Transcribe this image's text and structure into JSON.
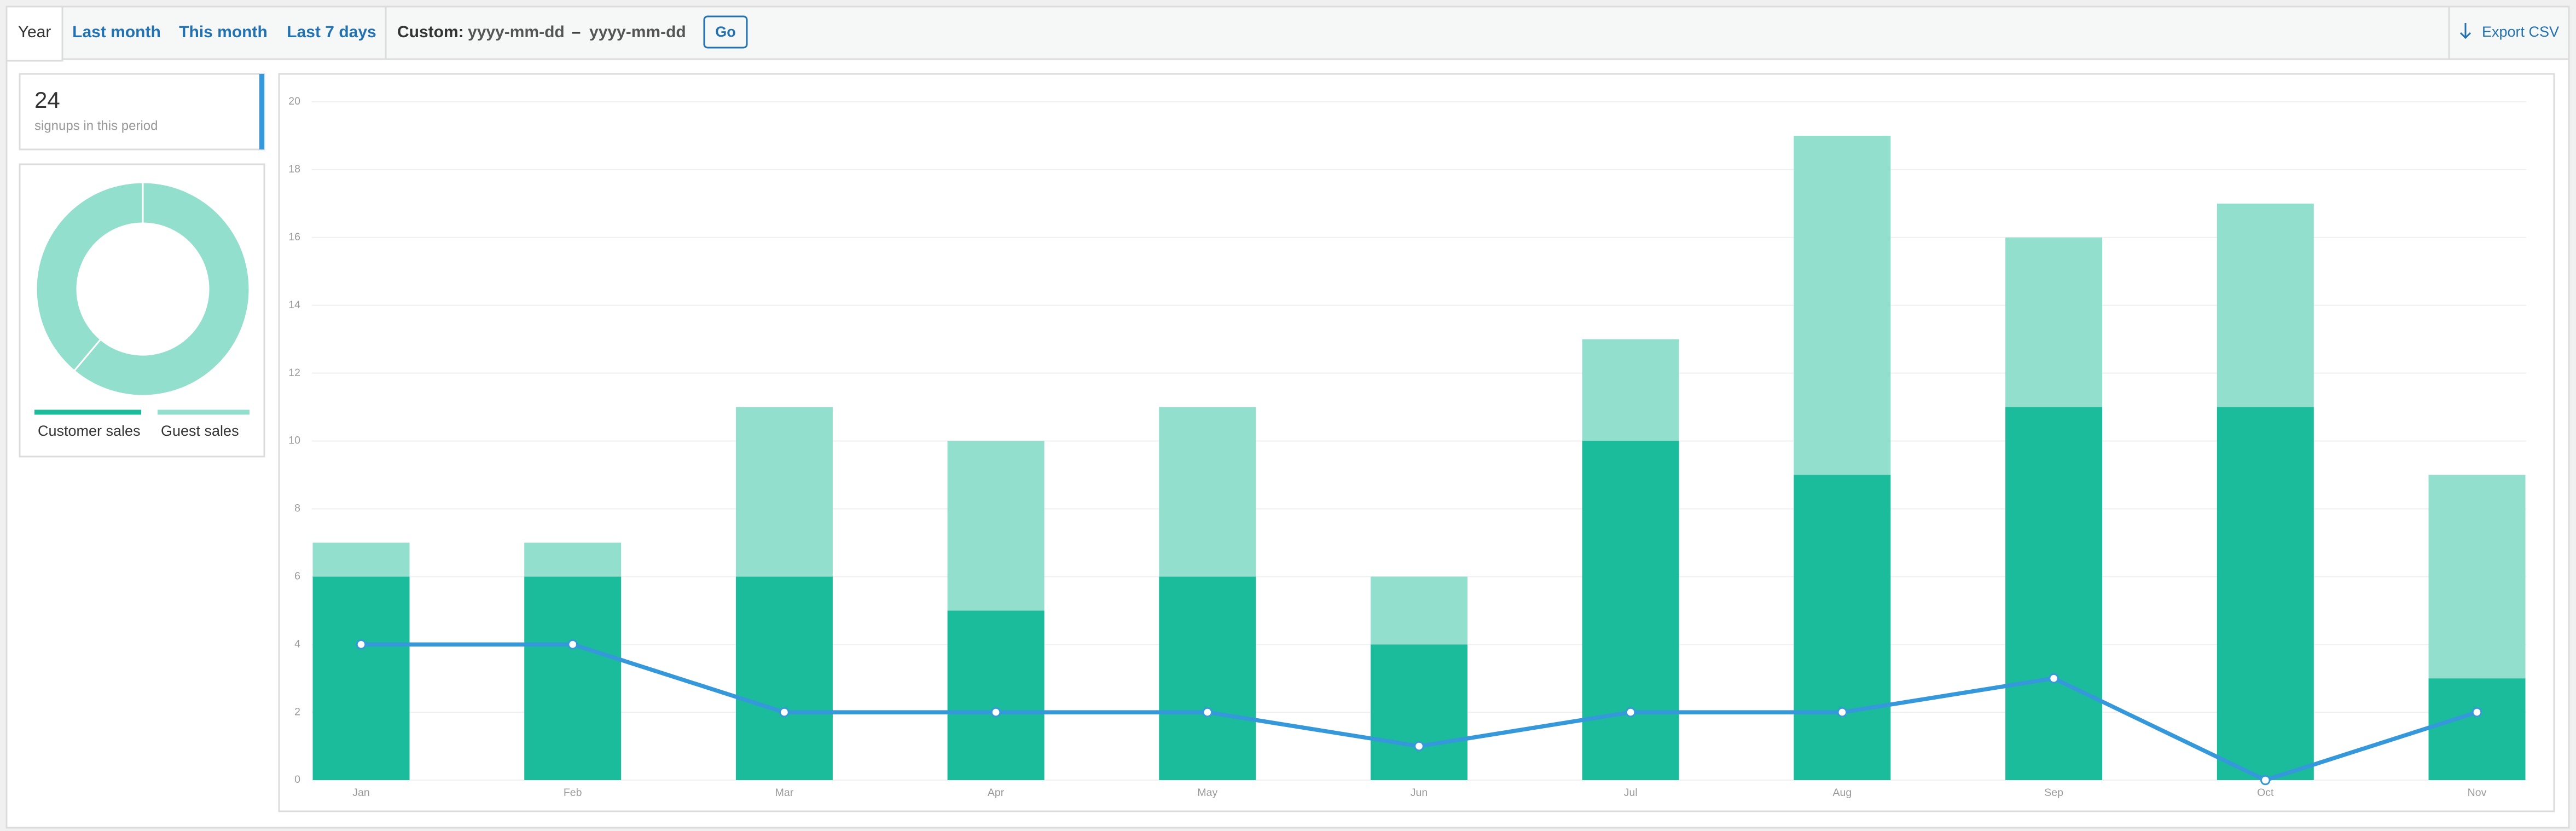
{
  "toolbar": {
    "tabs": [
      "Year",
      "Last month",
      "This month",
      "Last 7 days"
    ],
    "custom_label": "Custom:",
    "date_from": "yyyy-mm-dd",
    "separator": "–",
    "date_to": "yyyy-mm-dd",
    "go": "Go",
    "export": "Export CSV"
  },
  "summary": {
    "value": "24",
    "label": "signups in this period"
  },
  "chart_data": {
    "type": "bar",
    "categories": [
      "Jan",
      "Feb",
      "Mar",
      "Apr",
      "May",
      "Jun",
      "Jul",
      "Aug",
      "Sep",
      "Oct",
      "Nov"
    ],
    "series": [
      {
        "name": "Customer sales",
        "color": "#1bbc9b",
        "values": [
          6,
          6,
          6,
          5,
          6,
          4,
          10,
          9,
          11,
          11,
          3
        ]
      },
      {
        "name": "Guest sales",
        "color": "#93dfce",
        "values": [
          1,
          1,
          5,
          5,
          5,
          2,
          3,
          10,
          5,
          6,
          6
        ]
      },
      {
        "type": "line",
        "color": "#3498db",
        "values": [
          4,
          4,
          2,
          2,
          2,
          1,
          2,
          2,
          3,
          0,
          2
        ]
      }
    ],
    "donut_values": [
      77,
      49
    ],
    "donut_color": "#93dfce",
    "ylim": [
      0,
      20
    ],
    "yticks": [
      0,
      2,
      4,
      6,
      8,
      10,
      12,
      14,
      16,
      18,
      20
    ],
    "grid": true
  }
}
